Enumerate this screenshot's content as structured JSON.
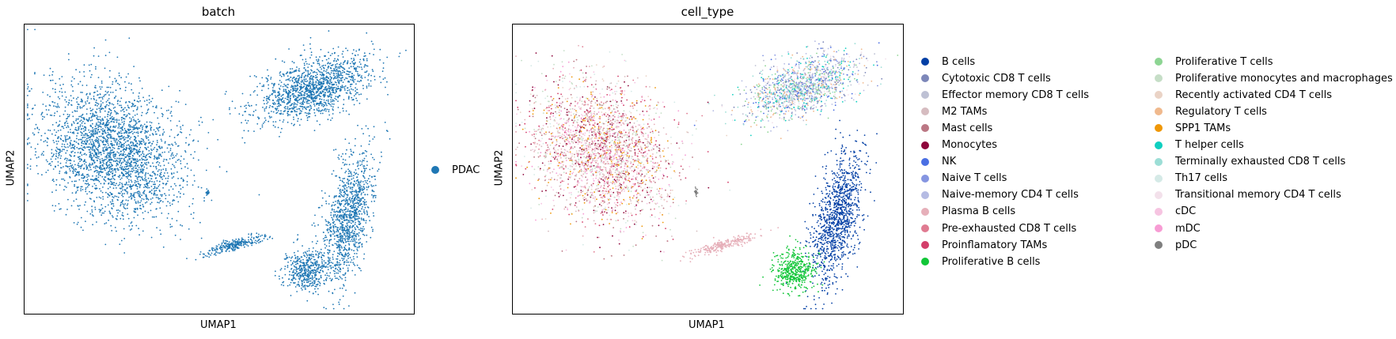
{
  "chart_data": [
    {
      "type": "scatter",
      "title": "batch",
      "xlabel": "UMAP1",
      "ylabel": "UMAP2",
      "grid": false,
      "legend_placement": "right",
      "series": [
        {
          "name": "PDAC",
          "color": "#1f77b4"
        }
      ]
    },
    {
      "type": "scatter",
      "title": "cell_type",
      "xlabel": "UMAP1",
      "ylabel": "UMAP2",
      "grid": false,
      "legend_placement": "right",
      "series": [
        {
          "name": "B cells",
          "color": "#023fa5"
        },
        {
          "name": "Cytotoxic CD8 T cells",
          "color": "#7d87b9"
        },
        {
          "name": "Effector memory CD8 T cells",
          "color": "#bec1d4"
        },
        {
          "name": "M2 TAMs",
          "color": "#d6bcc0"
        },
        {
          "name": "Mast cells",
          "color": "#bb7784"
        },
        {
          "name": "Monocytes",
          "color": "#8e063b"
        },
        {
          "name": "NK",
          "color": "#4a6fe3"
        },
        {
          "name": "Naive T cells",
          "color": "#8595e1"
        },
        {
          "name": "Naive-memory CD4 T cells",
          "color": "#b5bbe3"
        },
        {
          "name": "Plasma B cells",
          "color": "#e6afb9"
        },
        {
          "name": "Pre-exhausted CD8 T cells",
          "color": "#e07b91"
        },
        {
          "name": "Proinflamatory TAMs",
          "color": "#d33f6a"
        },
        {
          "name": "Proliferative B cells",
          "color": "#11c638"
        },
        {
          "name": "Proliferative T cells",
          "color": "#8dd593"
        },
        {
          "name": "Proliferative monocytes and macrophages",
          "color": "#c6dec7"
        },
        {
          "name": "Recently activated CD4 T cells",
          "color": "#ead3c6"
        },
        {
          "name": "Regulatory T cells",
          "color": "#f0b98d"
        },
        {
          "name": "SPP1 TAMs",
          "color": "#ef9708"
        },
        {
          "name": "T helper cells",
          "color": "#0fcfc0"
        },
        {
          "name": "Terminally exhausted CD8 T cells",
          "color": "#9cded6"
        },
        {
          "name": "Th17 cells",
          "color": "#d5eae7"
        },
        {
          "name": "Transitional memory CD4 T cells",
          "color": "#f3e1eb"
        },
        {
          "name": "cDC",
          "color": "#f6c4e1"
        },
        {
          "name": "mDC",
          "color": "#f79cd4"
        },
        {
          "name": "pDC",
          "color": "#7f7f7f"
        }
      ]
    }
  ]
}
